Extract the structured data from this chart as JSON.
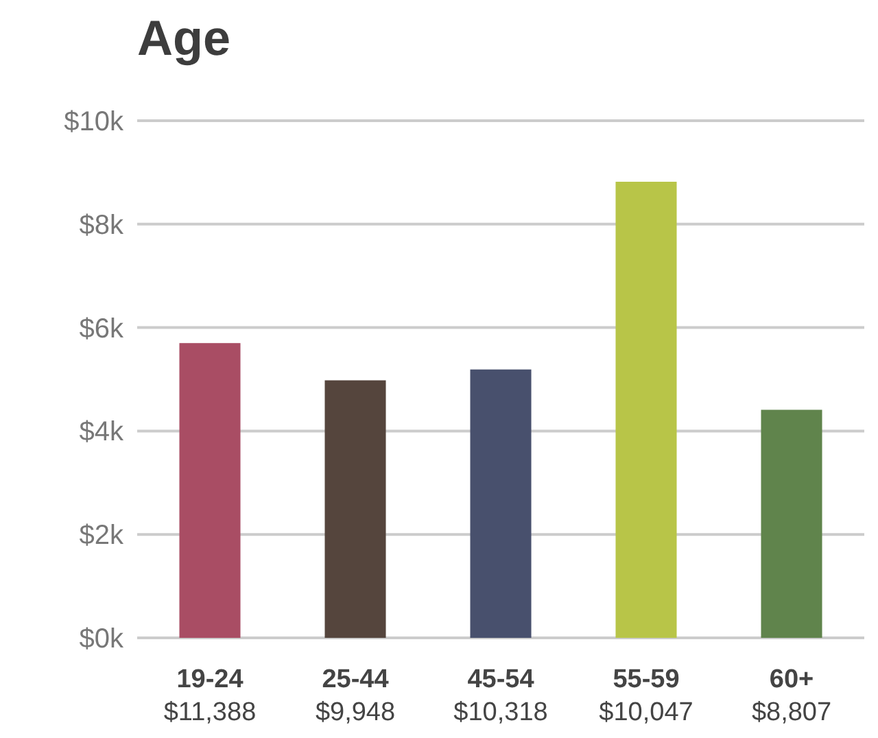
{
  "chart_data": {
    "type": "bar",
    "title": "Age",
    "categories": [
      "19-24\n$11,388",
      "25-44\n$9,948",
      "45-54\n$10,318",
      "55-59\n$10,047",
      "60+\n$8,807"
    ],
    "values": [
      5700,
      4980,
      5190,
      8820,
      4410
    ],
    "colors": [
      "#a94d64",
      "#55453d",
      "#48506d",
      "#b8c548",
      "#60844c"
    ],
    "ylim": [
      0,
      10000
    ],
    "yticks": [
      {
        "value": 0,
        "label": "$0k"
      },
      {
        "value": 2000,
        "label": "$2k"
      },
      {
        "value": 4000,
        "label": "$4k"
      },
      {
        "value": 6000,
        "label": "$6k"
      },
      {
        "value": 8000,
        "label": "$8k"
      },
      {
        "value": 10000,
        "label": "$10k"
      }
    ],
    "grid": "y"
  }
}
